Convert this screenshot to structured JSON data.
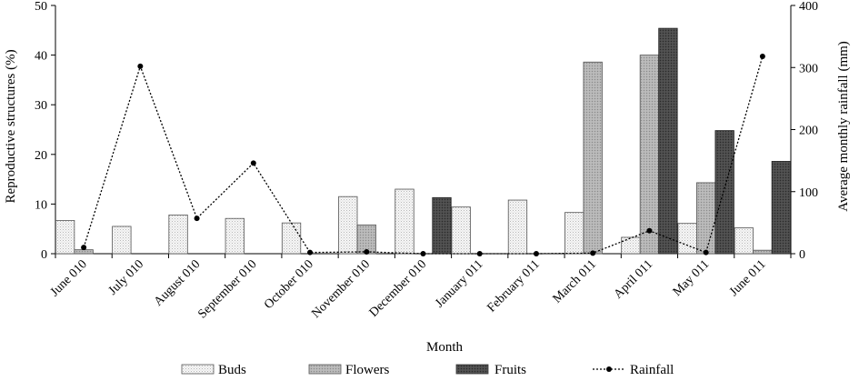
{
  "chart_data": {
    "type": "bar",
    "xlabel": "Month",
    "ylabel": "Reproductive structures (%)",
    "y2label": "Average monthly rainfall (mm)",
    "ylim": [
      0,
      50
    ],
    "y2lim": [
      0,
      400
    ],
    "yticks": [
      "0",
      "10",
      "20",
      "30",
      "40",
      "50"
    ],
    "y2ticks": [
      "0",
      "100",
      "200",
      "300",
      "400"
    ],
    "grid": false,
    "legend_position": "bottom",
    "categories": [
      "June 010",
      "July 010",
      "August 010",
      "September 010",
      "October 010",
      "November 010",
      "December 010",
      "January 011",
      "February 011",
      "March 011",
      "April 011",
      "May 011",
      "June 011"
    ],
    "series": [
      {
        "name": "Buds",
        "kind": "bar",
        "axis": "left",
        "style": "light-dotted",
        "values": [
          6.7,
          5.5,
          7.8,
          7.1,
          6.2,
          11.5,
          13.0,
          9.4,
          10.8,
          8.3,
          3.3,
          6.1,
          5.2
        ]
      },
      {
        "name": "Flowers",
        "kind": "bar",
        "axis": "left",
        "style": "medium-gray",
        "values": [
          0.8,
          0,
          0,
          0,
          0,
          5.8,
          0,
          0,
          0,
          38.6,
          40.0,
          14.3,
          0.7
        ]
      },
      {
        "name": "Fruits",
        "kind": "bar",
        "axis": "left",
        "style": "dark",
        "values": [
          0,
          0,
          0,
          0,
          0,
          0,
          11.3,
          0,
          0,
          0,
          45.4,
          24.8,
          18.6
        ]
      },
      {
        "name": "Rainfall",
        "kind": "line",
        "axis": "right",
        "style": "dotted-line-with-markers",
        "values": [
          10,
          302,
          57,
          146,
          2,
          3,
          0,
          0,
          0,
          1,
          37,
          2,
          318
        ]
      }
    ],
    "colors": {
      "buds_fill": "#f3f3f3",
      "flowers_fill": "#b2b2b2",
      "fruits_fill": "#464646",
      "bar_stroke": "#555555",
      "rainfall_line": "#000000"
    }
  }
}
